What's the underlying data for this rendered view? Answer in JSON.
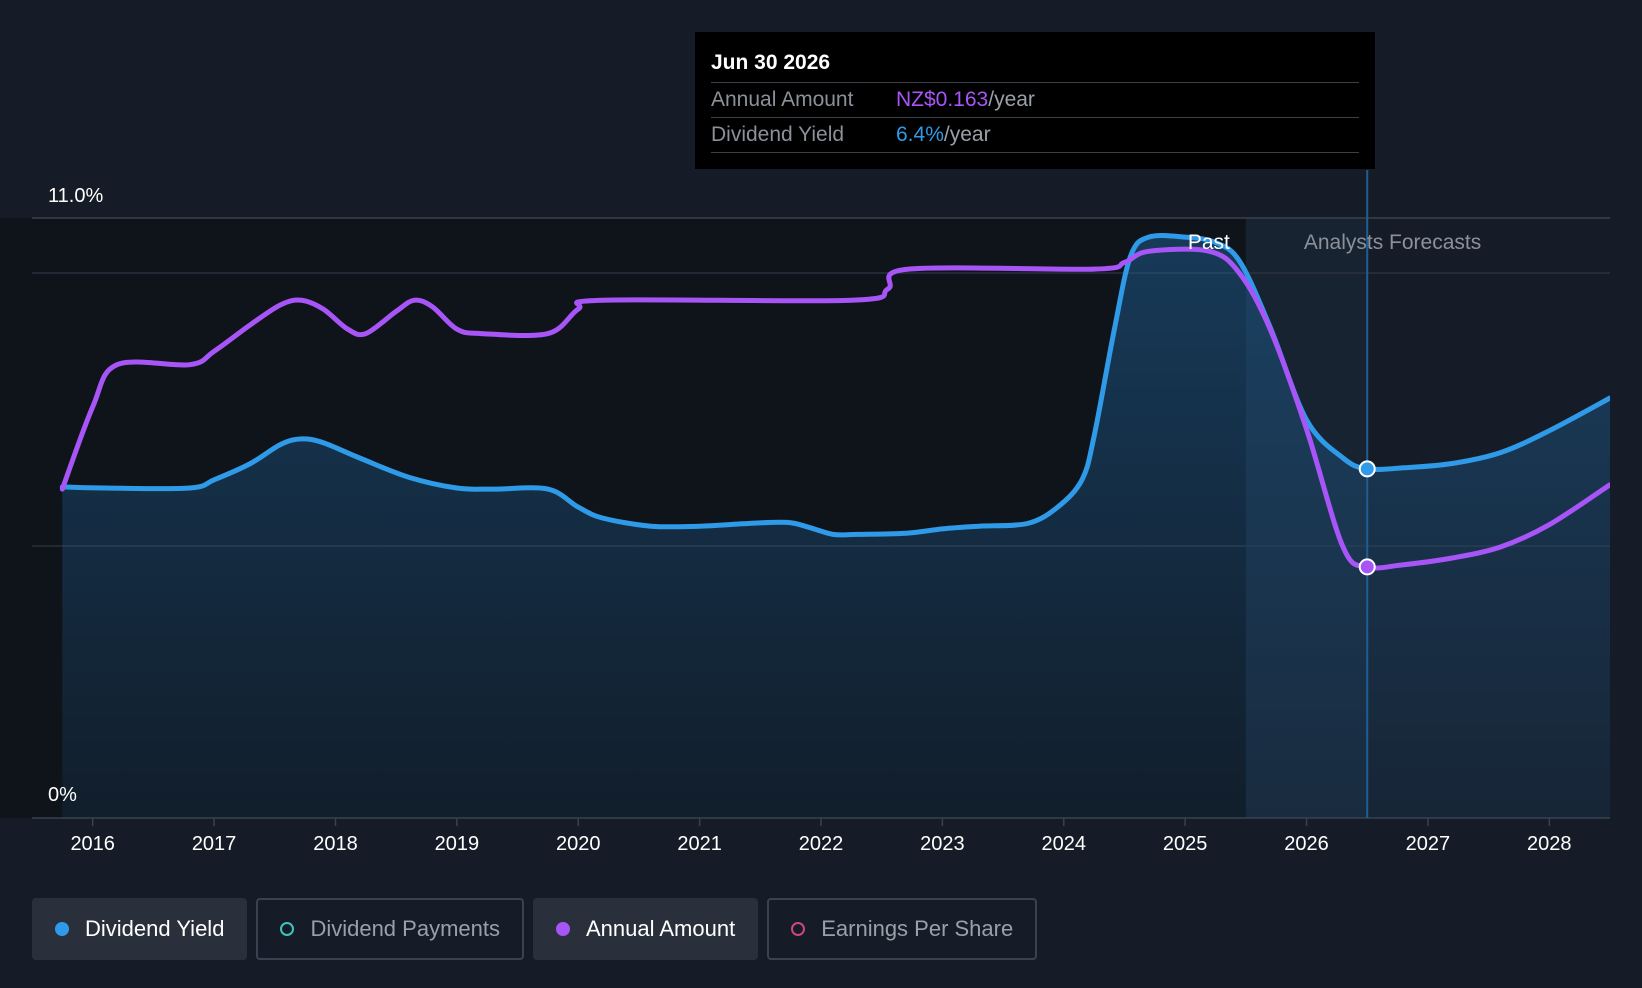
{
  "tooltip": {
    "date": "Jun 30 2026",
    "rows": [
      {
        "label": "Annual Amount",
        "value": "NZ$0.163",
        "unit": "/year"
      },
      {
        "label": "Dividend Yield",
        "value": "6.4%",
        "unit": "/year"
      }
    ]
  },
  "legend": [
    {
      "label": "Dividend Yield",
      "color": "#2f9be8",
      "active": true
    },
    {
      "label": "Dividend Payments",
      "color": "#3cc6b8",
      "active": false
    },
    {
      "label": "Annual Amount",
      "color": "#a855f7",
      "active": true
    },
    {
      "label": "Earnings Per Share",
      "color": "#d0457a",
      "active": false
    }
  ],
  "chart_data": {
    "type": "line",
    "y_top_label": "11.0%",
    "y_bottom_label": "0%",
    "ylim": [
      0,
      11.0
    ],
    "xlim": [
      2015.5,
      2028.5
    ],
    "x_ticks": [
      "2016",
      "2017",
      "2018",
      "2019",
      "2020",
      "2021",
      "2022",
      "2023",
      "2024",
      "2025",
      "2026",
      "2027",
      "2028"
    ],
    "past_label": "Past",
    "forecast_label": "Analysts Forecasts",
    "past_end": 2025.5,
    "hover_x": 2026.5,
    "series": [
      {
        "name": "Dividend Yield",
        "unit": "%",
        "color": "#2f9be8",
        "x": [
          2015.75,
          2016.1,
          2016.8,
          2017.0,
          2017.3,
          2017.55,
          2017.72,
          2017.9,
          2018.2,
          2018.6,
          2019.0,
          2019.3,
          2019.75,
          2020.0,
          2020.2,
          2020.6,
          2021.0,
          2021.4,
          2021.72,
          2021.9,
          2022.1,
          2022.3,
          2022.7,
          2023.0,
          2023.3,
          2023.7,
          2023.95,
          2024.15,
          2024.25,
          2024.42,
          2024.55,
          2024.7,
          2025.0,
          2025.25,
          2025.45,
          2025.7,
          2026.0,
          2026.3,
          2026.5,
          2026.8,
          2027.2,
          2027.6,
          2028.0,
          2028.5
        ],
        "values": [
          6.07,
          6.05,
          6.05,
          6.2,
          6.5,
          6.85,
          6.95,
          6.88,
          6.6,
          6.25,
          6.05,
          6.03,
          6.03,
          5.7,
          5.5,
          5.35,
          5.35,
          5.4,
          5.42,
          5.33,
          5.2,
          5.2,
          5.22,
          5.3,
          5.35,
          5.4,
          5.7,
          6.2,
          7.0,
          9.0,
          10.3,
          10.65,
          10.65,
          10.55,
          10.2,
          9.0,
          7.3,
          6.6,
          6.4,
          6.42,
          6.5,
          6.7,
          7.1,
          7.7
        ]
      },
      {
        "name": "Annual Amount",
        "unit": "NZ$",
        "color": "#a855f7",
        "x": [
          2015.75,
          2016.0,
          2016.2,
          2016.8,
          2017.0,
          2017.3,
          2017.55,
          2017.72,
          2017.9,
          2018.1,
          2018.25,
          2018.5,
          2018.65,
          2018.8,
          2019.0,
          2019.2,
          2019.75,
          2020.0,
          2020.2,
          2022.25,
          2022.55,
          2022.72,
          2024.25,
          2024.5,
          2024.7,
          2025.2,
          2025.45,
          2025.7,
          2026.0,
          2026.3,
          2026.5,
          2026.8,
          2027.2,
          2027.6,
          2028.0,
          2028.5
        ],
        "values": [
          0.198,
          0.235,
          0.254,
          0.254,
          0.26,
          0.272,
          0.281,
          0.283,
          0.279,
          0.27,
          0.268,
          0.278,
          0.283,
          0.28,
          0.27,
          0.268,
          0.268,
          0.279,
          0.283,
          0.283,
          0.288,
          0.297,
          0.297,
          0.3,
          0.305,
          0.305,
          0.295,
          0.27,
          0.225,
          0.172,
          0.163,
          0.164,
          0.167,
          0.172,
          0.182,
          0.2
        ]
      }
    ]
  }
}
